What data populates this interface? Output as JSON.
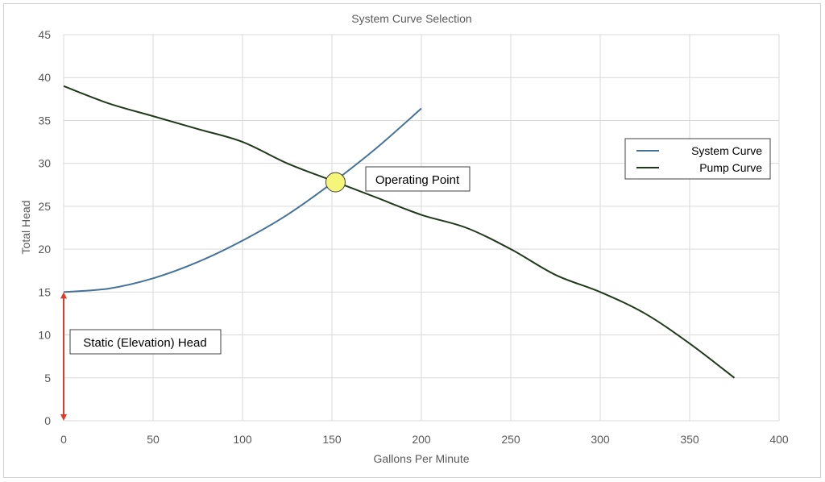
{
  "chart_data": {
    "type": "line",
    "title": "System Curve Selection",
    "xlabel": "Gallons Per Minute",
    "ylabel": "Total Head",
    "xlim": [
      0,
      400
    ],
    "ylim": [
      0,
      45
    ],
    "xticks": [
      0,
      50,
      100,
      150,
      200,
      250,
      300,
      350,
      400
    ],
    "yticks": [
      0,
      5,
      10,
      15,
      20,
      25,
      30,
      35,
      40,
      45
    ],
    "grid": true,
    "legend_position": "right",
    "series": [
      {
        "name": "System Curve",
        "color": "#44729a",
        "x": [
          0,
          25,
          50,
          75,
          100,
          125,
          150,
          175,
          200
        ],
        "y": [
          15.0,
          15.4,
          16.6,
          18.5,
          21.0,
          24.0,
          27.7,
          31.8,
          36.4
        ]
      },
      {
        "name": "Pump Curve",
        "color": "#1f3a1a",
        "x": [
          0,
          25,
          50,
          75,
          100,
          125,
          150,
          175,
          200,
          225,
          250,
          275,
          300,
          325,
          350,
          375
        ],
        "y": [
          39.0,
          37.0,
          35.5,
          34.0,
          32.5,
          30.0,
          28.0,
          26.0,
          24.0,
          22.5,
          20.0,
          17.0,
          15.0,
          12.5,
          9.0,
          5.0
        ]
      }
    ],
    "annotations": [
      {
        "text": "Operating Point",
        "x": 152,
        "y": 27.8,
        "marker_color": "#f5f57a"
      },
      {
        "text": "Static (Elevation) Head",
        "x": 0,
        "y_from": 0,
        "y_to": 15,
        "arrow_color": "#e03a2a"
      }
    ]
  }
}
